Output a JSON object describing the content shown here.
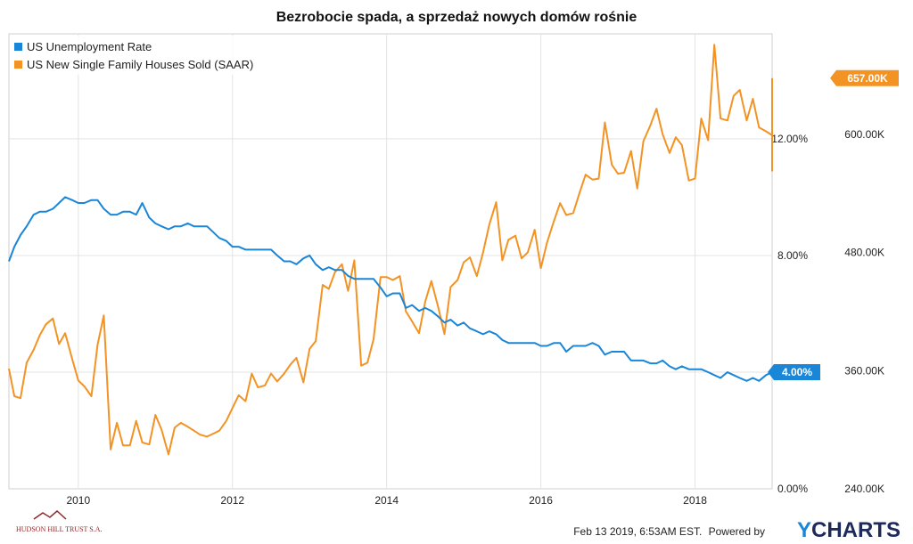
{
  "chart_data": {
    "type": "line",
    "title": "Bezrobocie spada, a sprzedaż nowych domów rośnie",
    "x_ticks": [
      "2010",
      "2012",
      "2014",
      "2016",
      "2018"
    ],
    "x_tick_values": [
      2010,
      2012,
      2014,
      2016,
      2018
    ],
    "xlim": [
      2009.1,
      2019.0
    ],
    "left_axis": {
      "ticks": [
        "0.00%",
        "4.00%",
        "8.00%",
        "12.00%"
      ],
      "tick_values": [
        0,
        4,
        8,
        12
      ],
      "ylim": [
        0,
        15.6
      ]
    },
    "right_axis": {
      "ticks": [
        "240.00K",
        "360.00K",
        "480.00K",
        "600.00K"
      ],
      "tick_values": [
        240,
        360,
        480,
        600
      ],
      "ylim": [
        240,
        702
      ]
    },
    "series": [
      {
        "name": "US Unemployment Rate",
        "axis": "left",
        "color": "#1a86d8",
        "end_label": "4.00%",
        "points": [
          [
            2009.08,
            7.8
          ],
          [
            2009.17,
            8.3
          ],
          [
            2009.25,
            8.7
          ],
          [
            2009.33,
            9.0
          ],
          [
            2009.42,
            9.4
          ],
          [
            2009.5,
            9.5
          ],
          [
            2009.58,
            9.5
          ],
          [
            2009.67,
            9.6
          ],
          [
            2009.75,
            9.8
          ],
          [
            2009.83,
            10.0
          ],
          [
            2009.92,
            9.9
          ],
          [
            2010.0,
            9.8
          ],
          [
            2010.08,
            9.8
          ],
          [
            2010.17,
            9.9
          ],
          [
            2010.25,
            9.9
          ],
          [
            2010.33,
            9.6
          ],
          [
            2010.42,
            9.4
          ],
          [
            2010.5,
            9.4
          ],
          [
            2010.58,
            9.5
          ],
          [
            2010.67,
            9.5
          ],
          [
            2010.75,
            9.4
          ],
          [
            2010.83,
            9.8
          ],
          [
            2010.92,
            9.3
          ],
          [
            2011.0,
            9.1
          ],
          [
            2011.08,
            9.0
          ],
          [
            2011.17,
            8.9
          ],
          [
            2011.25,
            9.0
          ],
          [
            2011.33,
            9.0
          ],
          [
            2011.42,
            9.1
          ],
          [
            2011.5,
            9.0
          ],
          [
            2011.58,
            9.0
          ],
          [
            2011.67,
            9.0
          ],
          [
            2011.75,
            8.8
          ],
          [
            2011.83,
            8.6
          ],
          [
            2011.92,
            8.5
          ],
          [
            2012.0,
            8.3
          ],
          [
            2012.08,
            8.3
          ],
          [
            2012.17,
            8.2
          ],
          [
            2012.25,
            8.2
          ],
          [
            2012.33,
            8.2
          ],
          [
            2012.42,
            8.2
          ],
          [
            2012.5,
            8.2
          ],
          [
            2012.58,
            8.0
          ],
          [
            2012.67,
            7.8
          ],
          [
            2012.75,
            7.8
          ],
          [
            2012.83,
            7.7
          ],
          [
            2012.92,
            7.9
          ],
          [
            2013.0,
            8.0
          ],
          [
            2013.08,
            7.7
          ],
          [
            2013.17,
            7.5
          ],
          [
            2013.25,
            7.6
          ],
          [
            2013.33,
            7.5
          ],
          [
            2013.42,
            7.5
          ],
          [
            2013.5,
            7.3
          ],
          [
            2013.58,
            7.2
          ],
          [
            2013.67,
            7.2
          ],
          [
            2013.75,
            7.2
          ],
          [
            2013.83,
            7.2
          ],
          [
            2013.92,
            6.9
          ],
          [
            2014.0,
            6.6
          ],
          [
            2014.08,
            6.7
          ],
          [
            2014.17,
            6.7
          ],
          [
            2014.25,
            6.2
          ],
          [
            2014.33,
            6.3
          ],
          [
            2014.42,
            6.1
          ],
          [
            2014.5,
            6.2
          ],
          [
            2014.58,
            6.1
          ],
          [
            2014.67,
            5.9
          ],
          [
            2014.75,
            5.7
          ],
          [
            2014.83,
            5.8
          ],
          [
            2014.92,
            5.6
          ],
          [
            2015.0,
            5.7
          ],
          [
            2015.08,
            5.5
          ],
          [
            2015.17,
            5.4
          ],
          [
            2015.25,
            5.3
          ],
          [
            2015.33,
            5.4
          ],
          [
            2015.42,
            5.3
          ],
          [
            2015.5,
            5.1
          ],
          [
            2015.58,
            5.0
          ],
          [
            2015.67,
            5.0
          ],
          [
            2015.75,
            5.0
          ],
          [
            2015.83,
            5.0
          ],
          [
            2015.92,
            5.0
          ],
          [
            2016.0,
            4.9
          ],
          [
            2016.08,
            4.9
          ],
          [
            2016.17,
            5.0
          ],
          [
            2016.25,
            5.0
          ],
          [
            2016.33,
            4.7
          ],
          [
            2016.42,
            4.9
          ],
          [
            2016.5,
            4.9
          ],
          [
            2016.58,
            4.9
          ],
          [
            2016.67,
            5.0
          ],
          [
            2016.75,
            4.9
          ],
          [
            2016.83,
            4.6
          ],
          [
            2016.92,
            4.7
          ],
          [
            2017.0,
            4.7
          ],
          [
            2017.08,
            4.7
          ],
          [
            2017.17,
            4.4
          ],
          [
            2017.25,
            4.4
          ],
          [
            2017.33,
            4.4
          ],
          [
            2017.42,
            4.3
          ],
          [
            2017.5,
            4.3
          ],
          [
            2017.58,
            4.4
          ],
          [
            2017.67,
            4.2
          ],
          [
            2017.75,
            4.1
          ],
          [
            2017.83,
            4.2
          ],
          [
            2017.92,
            4.1
          ],
          [
            2018.0,
            4.1
          ],
          [
            2018.08,
            4.1
          ],
          [
            2018.17,
            4.0
          ],
          [
            2018.25,
            3.9
          ],
          [
            2018.33,
            3.8
          ],
          [
            2018.42,
            4.0
          ],
          [
            2018.5,
            3.9
          ],
          [
            2018.58,
            3.8
          ],
          [
            2018.67,
            3.7
          ],
          [
            2018.75,
            3.8
          ],
          [
            2018.83,
            3.7
          ],
          [
            2018.92,
            3.9
          ],
          [
            2019.0,
            4.0
          ]
        ]
      },
      {
        "name": "US New Single Family Houses Sold (SAAR)",
        "axis": "right",
        "color": "#f39323",
        "end_label": "657.00K",
        "points": [
          [
            2009.08,
            362
          ],
          [
            2009.17,
            334
          ],
          [
            2009.25,
            332
          ],
          [
            2009.33,
            368
          ],
          [
            2009.42,
            381
          ],
          [
            2009.5,
            396
          ],
          [
            2009.58,
            407
          ],
          [
            2009.67,
            413
          ],
          [
            2009.75,
            387
          ],
          [
            2009.83,
            398
          ],
          [
            2009.92,
            372
          ],
          [
            2010.0,
            350
          ],
          [
            2010.08,
            344
          ],
          [
            2010.17,
            334
          ],
          [
            2010.25,
            386
          ],
          [
            2010.33,
            416
          ],
          [
            2010.42,
            280
          ],
          [
            2010.5,
            307
          ],
          [
            2010.58,
            284
          ],
          [
            2010.67,
            284
          ],
          [
            2010.75,
            309
          ],
          [
            2010.83,
            287
          ],
          [
            2010.92,
            285
          ],
          [
            2011.0,
            315
          ],
          [
            2011.08,
            300
          ],
          [
            2011.17,
            275
          ],
          [
            2011.25,
            302
          ],
          [
            2011.33,
            307
          ],
          [
            2011.42,
            303
          ],
          [
            2011.5,
            299
          ],
          [
            2011.58,
            295
          ],
          [
            2011.67,
            293
          ],
          [
            2011.75,
            296
          ],
          [
            2011.83,
            299
          ],
          [
            2011.92,
            309
          ],
          [
            2012.0,
            322
          ],
          [
            2012.08,
            335
          ],
          [
            2012.17,
            329
          ],
          [
            2012.25,
            357
          ],
          [
            2012.33,
            343
          ],
          [
            2012.42,
            345
          ],
          [
            2012.5,
            357
          ],
          [
            2012.58,
            349
          ],
          [
            2012.67,
            357
          ],
          [
            2012.75,
            366
          ],
          [
            2012.83,
            373
          ],
          [
            2012.92,
            348
          ],
          [
            2013.0,
            382
          ],
          [
            2013.08,
            390
          ],
          [
            2013.17,
            447
          ],
          [
            2013.25,
            443
          ],
          [
            2013.33,
            460
          ],
          [
            2013.42,
            468
          ],
          [
            2013.5,
            441
          ],
          [
            2013.58,
            472
          ],
          [
            2013.67,
            365
          ],
          [
            2013.75,
            368
          ],
          [
            2013.83,
            392
          ],
          [
            2013.92,
            455
          ],
          [
            2014.0,
            455
          ],
          [
            2014.08,
            452
          ],
          [
            2014.17,
            456
          ],
          [
            2014.25,
            420
          ],
          [
            2014.33,
            410
          ],
          [
            2014.42,
            398
          ],
          [
            2014.5,
            430
          ],
          [
            2014.58,
            451
          ],
          [
            2014.67,
            424
          ],
          [
            2014.75,
            397
          ],
          [
            2014.83,
            445
          ],
          [
            2014.92,
            452
          ],
          [
            2015.0,
            470
          ],
          [
            2015.08,
            475
          ],
          [
            2015.17,
            456
          ],
          [
            2015.25,
            480
          ],
          [
            2015.33,
            508
          ],
          [
            2015.42,
            531
          ],
          [
            2015.5,
            472
          ],
          [
            2015.58,
            493
          ],
          [
            2015.67,
            497
          ],
          [
            2015.75,
            474
          ],
          [
            2015.83,
            480
          ],
          [
            2015.92,
            503
          ],
          [
            2016.0,
            464
          ],
          [
            2016.08,
            490
          ],
          [
            2016.17,
            512
          ],
          [
            2016.25,
            530
          ],
          [
            2016.33,
            518
          ],
          [
            2016.42,
            520
          ],
          [
            2016.5,
            540
          ],
          [
            2016.58,
            559
          ],
          [
            2016.67,
            554
          ],
          [
            2016.75,
            555
          ],
          [
            2016.83,
            612
          ],
          [
            2016.92,
            569
          ],
          [
            2017.0,
            560
          ],
          [
            2017.08,
            561
          ],
          [
            2017.17,
            583
          ],
          [
            2017.25,
            545
          ],
          [
            2017.33,
            593
          ],
          [
            2017.42,
            609
          ],
          [
            2017.5,
            626
          ],
          [
            2017.58,
            600
          ],
          [
            2017.67,
            581
          ],
          [
            2017.75,
            597
          ],
          [
            2017.83,
            589
          ],
          [
            2017.92,
            553
          ],
          [
            2018.0,
            555
          ],
          [
            2018.08,
            616
          ],
          [
            2018.17,
            594
          ],
          [
            2018.25,
            691
          ],
          [
            2018.33,
            616
          ],
          [
            2018.42,
            614
          ],
          [
            2018.5,
            639
          ],
          [
            2018.58,
            645
          ],
          [
            2018.67,
            614
          ],
          [
            2018.75,
            636
          ],
          [
            2018.83,
            607
          ],
          [
            2018.92,
            603
          ],
          [
            2019.0,
            599
          ],
          [
            2019.08,
            607
          ],
          [
            2019.17,
            563
          ],
          [
            2019.25,
            657
          ]
        ]
      }
    ]
  },
  "footer": {
    "timestamp": "Feb 13 2019, 6:53AM EST.",
    "powered_by": "Powered by",
    "brand_y": "Y",
    "brand_rest": "CHARTS",
    "logo_text": "HUDSON HILL TRUST S.A."
  }
}
